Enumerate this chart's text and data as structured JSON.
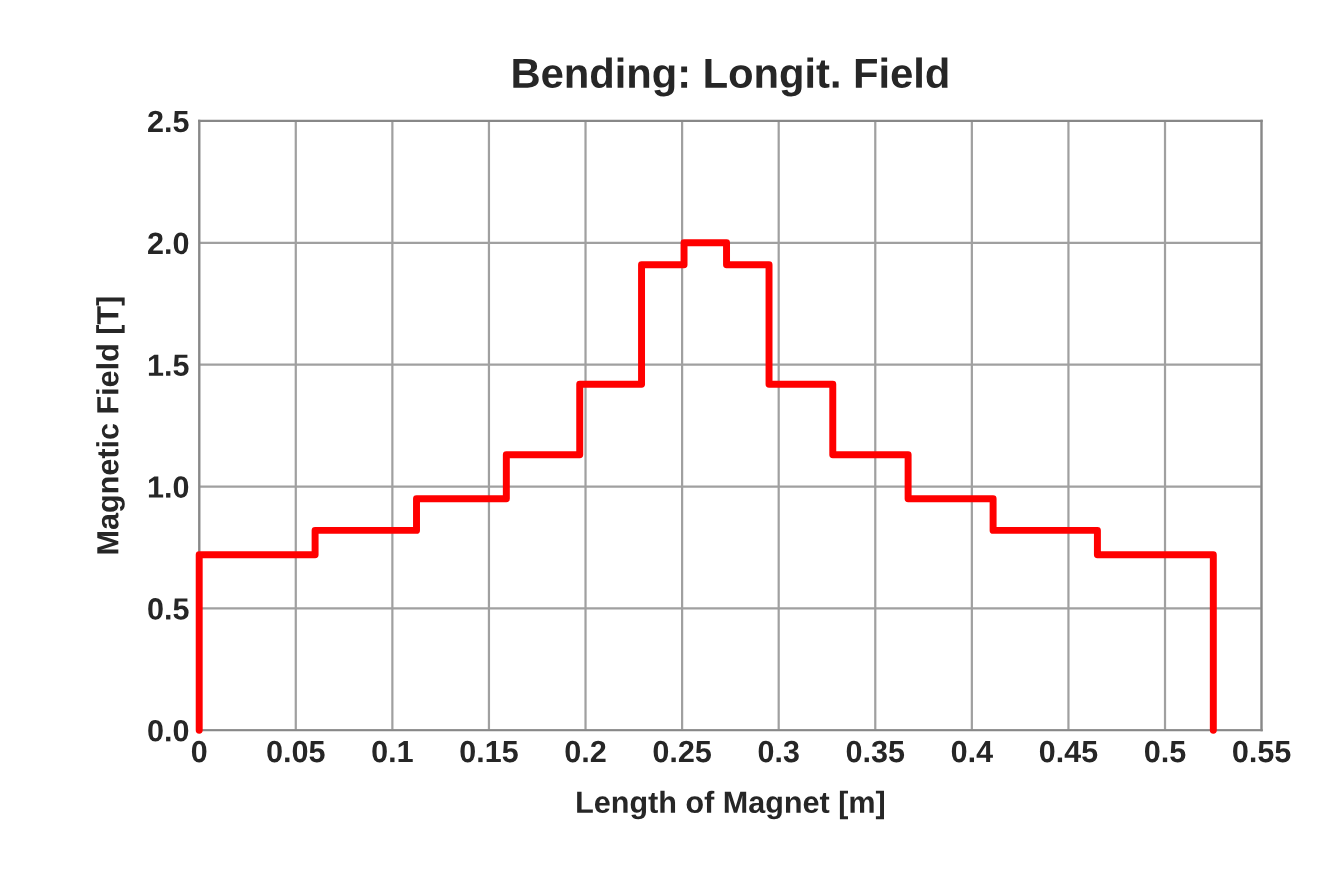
{
  "chart_data": {
    "type": "step",
    "title": "Bending: Longit. Field",
    "xlabel": "Length of Magnet [m]",
    "ylabel": "Magnetic Field [T]",
    "x": [
      0,
      0,
      0.06,
      0.1125,
      0.159,
      0.197,
      0.229,
      0.251,
      0.273,
      0.295,
      0.328,
      0.367,
      0.411,
      0.465,
      0.525
    ],
    "series": [
      {
        "color": "#ff0000",
        "values": [
          0,
          0.72,
          0.82,
          0.95,
          1.13,
          1.42,
          1.91,
          2.0,
          1.91,
          1.42,
          1.13,
          0.95,
          0.82,
          0.72,
          0
        ]
      }
    ],
    "xlim": [
      0,
      0.55
    ],
    "xticks": [
      0,
      0.05,
      0.1,
      0.15,
      0.2,
      0.25,
      0.3,
      0.35,
      0.4,
      0.45,
      0.5,
      0.55
    ],
    "ylim": [
      0,
      2.5
    ],
    "yticks": [
      {
        "value": 0,
        "label": "0.0"
      },
      0.5,
      {
        "value": 1,
        "label": "1.0"
      },
      1.5,
      {
        "value": 2,
        "label": "2.0"
      },
      2.5
    ],
    "grid": true,
    "marker": "none",
    "line_style": "solid"
  }
}
